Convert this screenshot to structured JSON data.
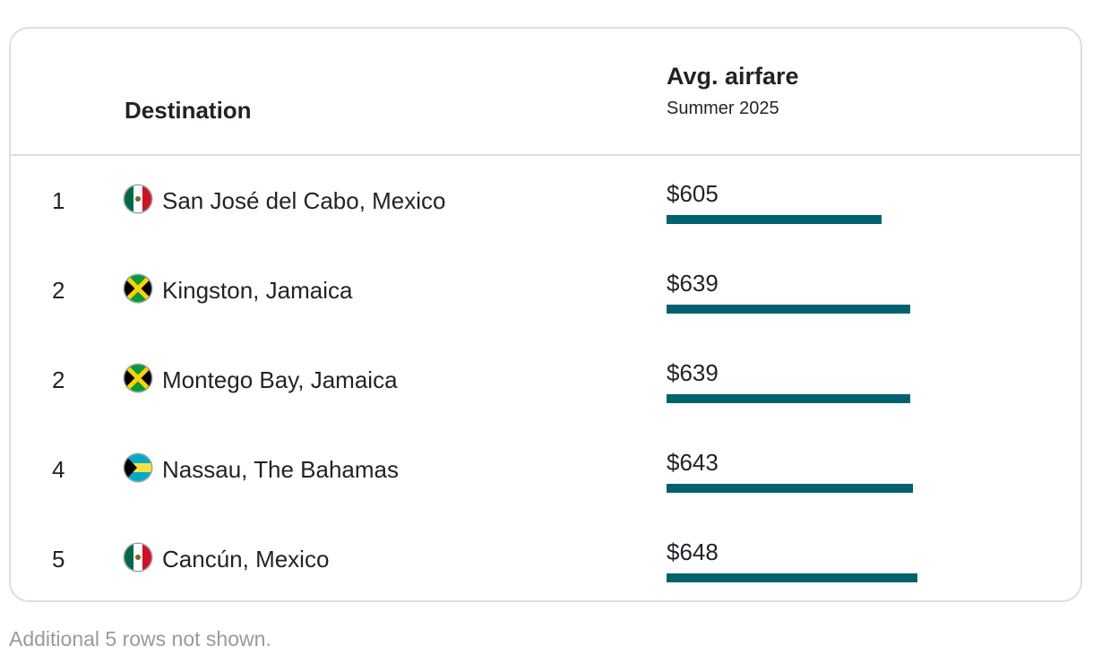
{
  "header": {
    "destination_label": "Destination",
    "metric_label": "Avg. airfare",
    "metric_sublabel": "Summer 2025"
  },
  "chart_data": {
    "type": "bar",
    "title": "",
    "categories": [
      "San José del Cabo, Mexico",
      "Kingston, Jamaica",
      "Montego Bay, Jamaica",
      "Nassau, The Bahamas",
      "Cancún, Mexico"
    ],
    "values": [
      605,
      639,
      639,
      643,
      648
    ],
    "value_labels": [
      "$605",
      "$639",
      "$639",
      "$643",
      "$648"
    ],
    "ranks": [
      "1",
      "2",
      "2",
      "4",
      "5"
    ],
    "flags": [
      "mexico-flag-icon",
      "jamaica-flag-icon",
      "jamaica-flag-icon",
      "bahamas-flag-icon",
      "mexico-flag-icon"
    ],
    "bar_color": "#006270",
    "xlim": [
      0,
      648
    ]
  },
  "footnote": "Additional 5 rows not shown."
}
